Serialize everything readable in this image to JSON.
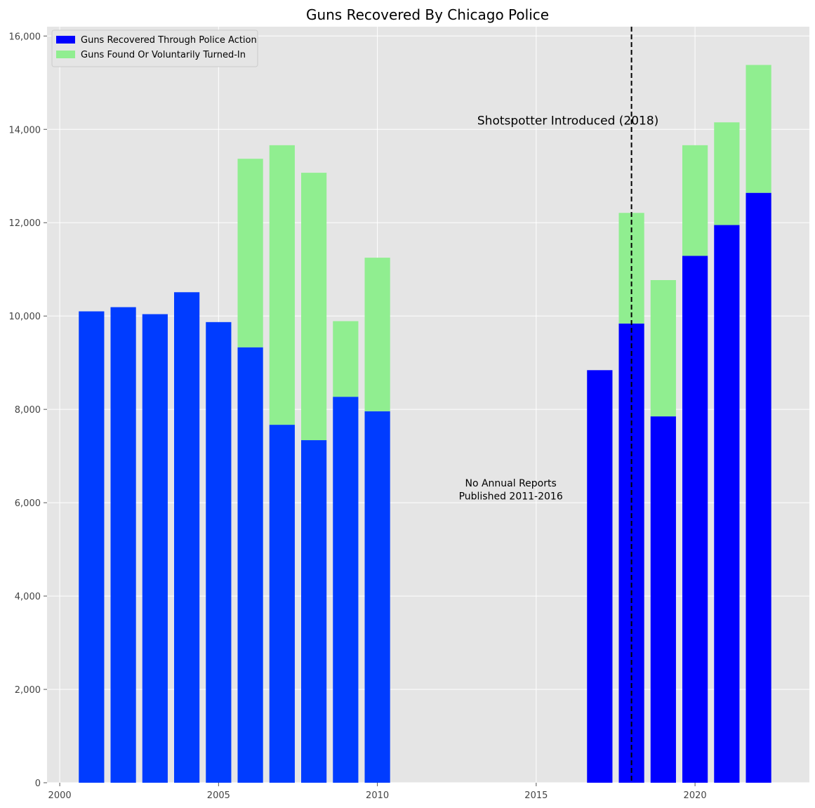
{
  "chart_data": {
    "type": "bar",
    "stacked": true,
    "title": "Guns Recovered By Chicago Police",
    "xlabel": "",
    "ylabel": "",
    "xlim": [
      1999.6,
      2023.6
    ],
    "ylim": [
      0,
      16200
    ],
    "xticks": [
      2000,
      2005,
      2010,
      2015,
      2020
    ],
    "yticks": [
      0,
      2000,
      4000,
      6000,
      8000,
      10000,
      12000,
      14000,
      16000
    ],
    "ytick_labels": [
      "0",
      "2,000",
      "4,000",
      "6,000",
      "8,000",
      "10,000",
      "12,000",
      "14,000",
      "16,000"
    ],
    "grid": true,
    "legend_position": "top-left",
    "x": [
      2001,
      2002,
      2003,
      2004,
      2005,
      2006,
      2007,
      2008,
      2009,
      2010,
      2017,
      2018,
      2019,
      2020,
      2021,
      2022
    ],
    "series": [
      {
        "name": "Guns Recovered Through Police Action",
        "legend_color": "#0000ff",
        "colors": [
          "#003cff",
          "#003cff",
          "#003cff",
          "#003cff",
          "#003cff",
          "#003cff",
          "#003cff",
          "#003cff",
          "#003cff",
          "#003cff",
          "#0000ff",
          "#0000ff",
          "#0000ff",
          "#0000ff",
          "#0000ff",
          "#0000ff"
        ],
        "values": [
          10100,
          10190,
          10040,
          10510,
          9870,
          9330,
          7670,
          7340,
          8270,
          7960,
          8840,
          9840,
          7850,
          11290,
          11950,
          12640
        ]
      },
      {
        "name": "Guns Found Or Voluntarily Turned-In",
        "legend_color": "#90ee90",
        "colors": [
          "#90ee90"
        ],
        "values": [
          0,
          0,
          0,
          0,
          0,
          4040,
          5990,
          5730,
          1620,
          3290,
          0,
          2370,
          2920,
          2370,
          2200,
          2740
        ]
      }
    ],
    "annotations": [
      {
        "text": "Shotspotter Introduced (2018)",
        "x": 2016,
        "y": 14100,
        "size": "large"
      },
      {
        "text": "No Annual Reports",
        "x": 2014.2,
        "y": 6350,
        "size": "small"
      },
      {
        "text": "Published 2011-2016",
        "x": 2014.2,
        "y": 6070,
        "size": "small"
      }
    ],
    "vline": {
      "x": 2018,
      "style": "dashed",
      "color": "#000000"
    },
    "colors": {
      "background": "#e5e5e5",
      "grid": "#ffffff"
    }
  }
}
